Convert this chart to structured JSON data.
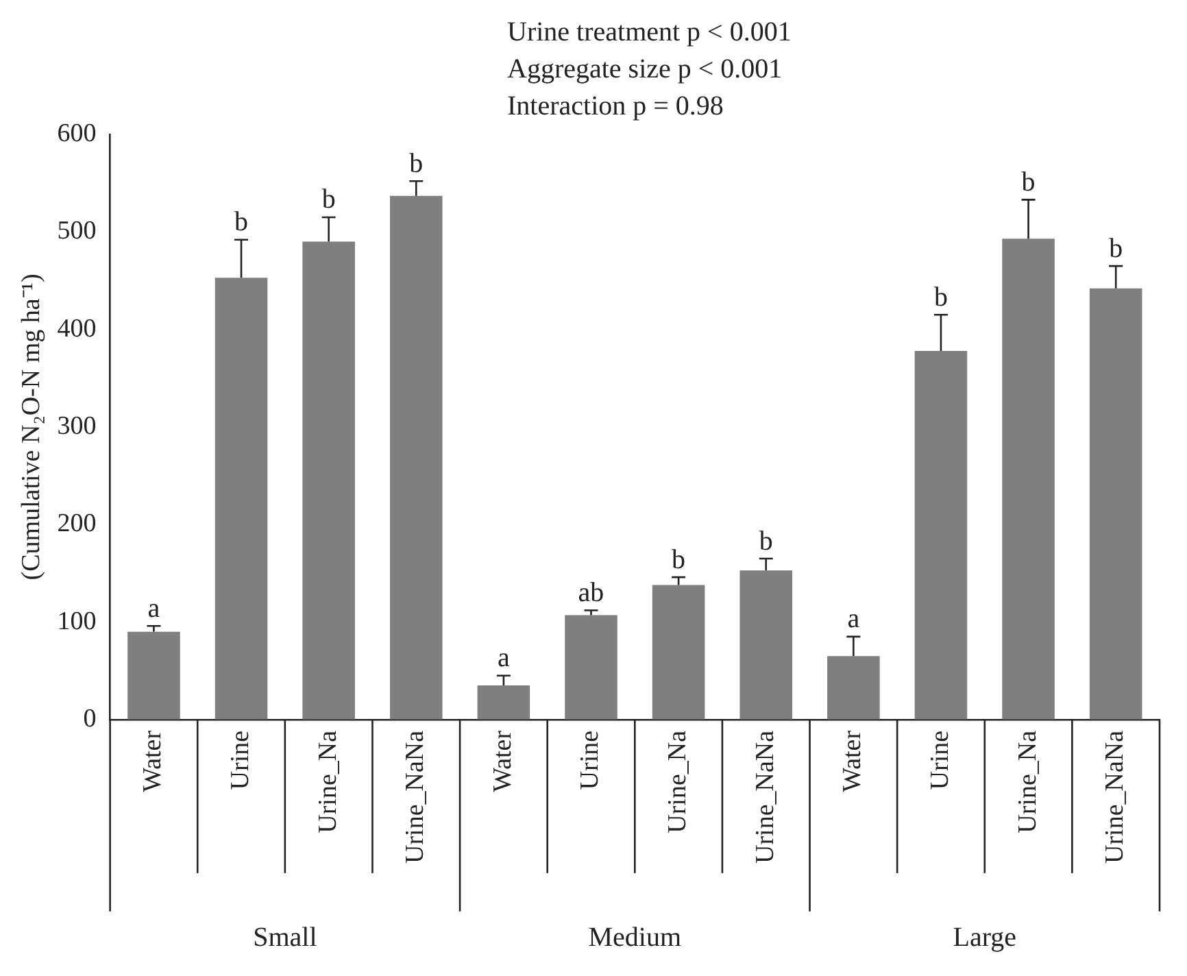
{
  "chart_data": {
    "type": "bar",
    "ylabel": "(Cumulative N₂O-N mg ha⁻¹)",
    "categories": [
      "Water",
      "Urine",
      "Urine_Na",
      "Urine_NaNa",
      "Water",
      "Urine",
      "Urine_Na",
      "Urine_NaNa",
      "Water",
      "Urine",
      "Urine_Na",
      "Urine_NaNa"
    ],
    "values": [
      90,
      453,
      490,
      537,
      35,
      107,
      138,
      153,
      65,
      378,
      493,
      442
    ],
    "errors": [
      6,
      39,
      25,
      15,
      10,
      5,
      8,
      12,
      20,
      37,
      40,
      23
    ],
    "value_labels": [
      "a",
      "b",
      "b",
      "b",
      "a",
      "ab",
      "b",
      "b",
      "a",
      "b",
      "b",
      "b"
    ],
    "color": "#7f7f7f",
    "ylim": [
      0,
      600
    ],
    "yticks": [
      0,
      100,
      200,
      300,
      400,
      500,
      600
    ],
    "grid": false,
    "legend": false,
    "annotations": [
      "Urine treatment p < 0.001",
      "Aggregate size p < 0.001",
      "Interaction p = 0.98",
      "Small",
      "Medium",
      "Large"
    ]
  }
}
